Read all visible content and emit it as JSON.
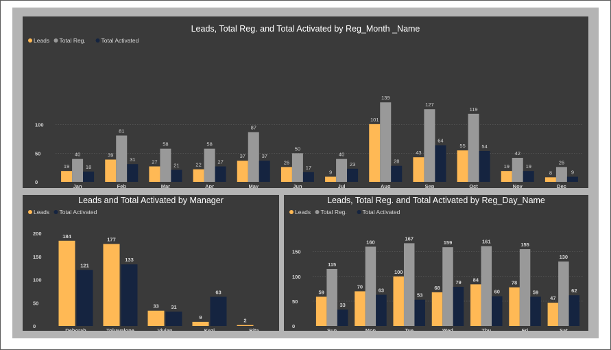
{
  "colors": {
    "leads": "#FFB955",
    "total_reg": "#999999",
    "total_activated": "#152440"
  },
  "chart_data": [
    {
      "id": "monthly",
      "type": "bar",
      "title": "Leads, Total Reg. and Total Activated by Reg_Month _Name",
      "legend": "top-left",
      "grid": true,
      "ylim": [
        0,
        150
      ],
      "yticks": [
        0,
        50,
        100
      ],
      "categories": [
        "Jan",
        "Feb",
        "Mar",
        "Apr",
        "May",
        "Jun",
        "Jul",
        "Aug",
        "Sep",
        "Oct",
        "Nov",
        "Dec"
      ],
      "series": [
        {
          "name": "Leads",
          "color": "#FFB955",
          "values": [
            19,
            39,
            27,
            22,
            37,
            26,
            9,
            101,
            43,
            55,
            19,
            8
          ]
        },
        {
          "name": "Total Reg.",
          "color": "#999999",
          "values": [
            40,
            81,
            58,
            58,
            87,
            50,
            40,
            139,
            127,
            119,
            42,
            26
          ]
        },
        {
          "name": "Total Activated",
          "color": "#152440",
          "values": [
            18,
            31,
            21,
            27,
            37,
            17,
            23,
            28,
            64,
            54,
            19,
            9
          ]
        }
      ]
    },
    {
      "id": "manager",
      "type": "bar",
      "title": "Leads and Total Activated by Manager",
      "legend": "top-left",
      "grid": false,
      "ylim": [
        0,
        200
      ],
      "yticks": [
        0,
        50,
        100,
        150,
        200
      ],
      "categories": [
        "Deborah",
        "Toluwalope",
        "Vivian",
        "Kezi",
        "Rita"
      ],
      "series": [
        {
          "name": "Leads",
          "color": "#FFB955",
          "values": [
            184,
            177,
            33,
            9,
            2
          ]
        },
        {
          "name": "Total Activated",
          "color": "#152440",
          "values": [
            121,
            133,
            31,
            63,
            null
          ]
        }
      ]
    },
    {
      "id": "day",
      "type": "bar",
      "title": "Leads, Total Reg. and Total Activated by Reg_Day_Name",
      "legend": "top-left",
      "grid": true,
      "ylim": [
        0,
        180
      ],
      "yticks": [
        0,
        50,
        100,
        150
      ],
      "categories": [
        "Sun",
        "Mon",
        "Tue",
        "Wed",
        "Thu",
        "Fri",
        "Sat"
      ],
      "series": [
        {
          "name": "Leads",
          "color": "#FFB955",
          "values": [
            59,
            70,
            100,
            68,
            84,
            78,
            47
          ]
        },
        {
          "name": "Total Reg.",
          "color": "#999999",
          "values": [
            115,
            160,
            167,
            159,
            161,
            155,
            130
          ]
        },
        {
          "name": "Total Activated",
          "color": "#152440",
          "values": [
            33,
            63,
            53,
            79,
            60,
            59,
            62
          ]
        }
      ]
    }
  ]
}
